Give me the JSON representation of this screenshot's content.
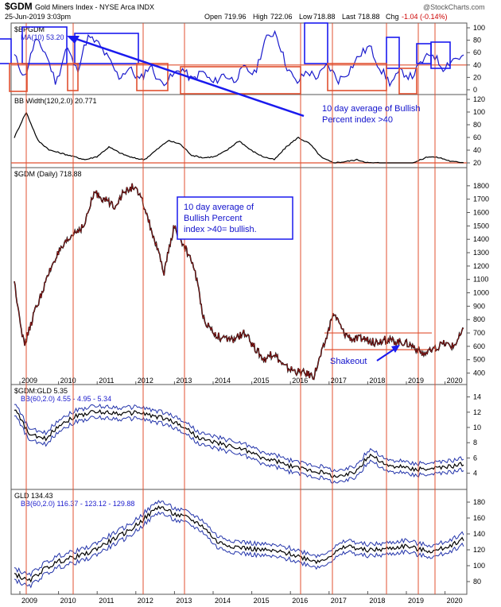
{
  "header": {
    "symbol": "$GDM",
    "name": "Gold Miners Index - NYSE Arca INDX",
    "date": "25-Jun-2019 3:03pm",
    "open_label": "Open",
    "open": "719.96",
    "high_label": "High",
    "high": "722.06",
    "low_label": "Low",
    "low": "718.88",
    "last_label": "Last",
    "last": "718.88",
    "chg_label": "Chg",
    "chg": "-1.04 (-0.14%)",
    "brand": "@StockCharts.com"
  },
  "annotations": {
    "bpi": [
      "10 day average of Bullish",
      "Percent index >40"
    ],
    "main": [
      "10 day average of",
      "Bullish Percent",
      "index >40= bullish."
    ],
    "shakeout": "Shakeout"
  },
  "chart_data": [
    {
      "type": "line",
      "id": "bpgdm",
      "title": "$BPGDM",
      "legend": "MA(10) 53.20",
      "ylim": [
        0,
        100
      ],
      "yticks": [
        "100",
        "80",
        "60",
        "40",
        "20",
        "0"
      ],
      "y": [
        55,
        20,
        80,
        60,
        10,
        70,
        30,
        85,
        75,
        50,
        20,
        35,
        15,
        40,
        10,
        20,
        35,
        15,
        30,
        10,
        25,
        15,
        35,
        25,
        80,
        95,
        40,
        10,
        30,
        20,
        40,
        15,
        30,
        55,
        70,
        35,
        10,
        30,
        20,
        45,
        60,
        35,
        50,
        53
      ],
      "reference_line": 40
    },
    {
      "type": "line",
      "id": "bbwidth",
      "title": "BB Width(120,2.0) 20.771",
      "ylim": [
        20,
        120
      ],
      "yticks": [
        "120",
        "100",
        "80",
        "60",
        "40",
        "20"
      ],
      "y": [
        60,
        100,
        55,
        40,
        35,
        30,
        25,
        30,
        45,
        35,
        28,
        25,
        40,
        55,
        50,
        32,
        28,
        30,
        40,
        55,
        40,
        30,
        25,
        45,
        60,
        50,
        28,
        20,
        22,
        25,
        20,
        20,
        18,
        17,
        22,
        30,
        28,
        22,
        20.77
      ],
      "reference_line": 20
    },
    {
      "type": "line",
      "id": "gdm",
      "title": "$GDM (Daily) 718.88",
      "ylim": [
        350,
        1900
      ],
      "yticks": [
        "1800",
        "1700",
        "1600",
        "1500",
        "1400",
        "1300",
        "1200",
        "1100",
        "1000",
        "900",
        "800",
        "700",
        "600",
        "500",
        "400"
      ],
      "x_labels": [
        "2009",
        "2010",
        "2011",
        "2012",
        "2013",
        "2014",
        "2015",
        "2016",
        "2017",
        "2018",
        "2019",
        "2020"
      ],
      "x": [
        "2008-10",
        "2009-01",
        "2009-04",
        "2009-07",
        "2009-10",
        "2010-01",
        "2010-04",
        "2010-07",
        "2010-10",
        "2011-01",
        "2011-04",
        "2011-07",
        "2011-09",
        "2011-11",
        "2012-01",
        "2012-04",
        "2012-07",
        "2012-10",
        "2013-01",
        "2013-04",
        "2013-07",
        "2013-10",
        "2014-01",
        "2014-04",
        "2014-07",
        "2014-10",
        "2015-01",
        "2015-04",
        "2015-07",
        "2015-10",
        "2016-01",
        "2016-04",
        "2016-08",
        "2016-11",
        "2017-01",
        "2017-04",
        "2017-07",
        "2017-10",
        "2018-01",
        "2018-04",
        "2018-07",
        "2018-09",
        "2018-12",
        "2019-03",
        "2019-05",
        "2019-06"
      ],
      "y": [
        1080,
        600,
        850,
        1050,
        1250,
        1350,
        1450,
        1500,
        1750,
        1700,
        1650,
        1750,
        1800,
        1650,
        1400,
        1150,
        1500,
        1350,
        1200,
        800,
        700,
        650,
        650,
        700,
        600,
        500,
        550,
        450,
        420,
        400,
        380,
        600,
        850,
        700,
        650,
        660,
        630,
        650,
        640,
        630,
        600,
        540,
        570,
        620,
        600,
        719
      ],
      "hlines": [
        700,
        575
      ]
    },
    {
      "type": "line",
      "id": "gdmgld",
      "title": "$GDM:GLD 5.35",
      "legend": "BB(60,2.0) 4.55 - 4.95 - 5.34",
      "ylim": [
        2.5,
        15
      ],
      "yticks": [
        "14",
        "12",
        "10",
        "8",
        "6",
        "4"
      ],
      "y": [
        12.5,
        9,
        8.5,
        10.5,
        11.5,
        12,
        12,
        11.8,
        12,
        11.5,
        11,
        10,
        8.5,
        8,
        7.5,
        7,
        6,
        5.5,
        4.8,
        4.5,
        4,
        3.5,
        4.2,
        6.5,
        5,
        4.8,
        4.5,
        4.6,
        4.8,
        5.3
      ]
    },
    {
      "type": "line",
      "id": "gld",
      "title": "GLD 134.43",
      "legend": "BB(60,2.0) 116.37 - 123.12 - 129.88",
      "ylim": [
        70,
        190
      ],
      "yticks": [
        "180",
        "160",
        "140",
        "120",
        "100",
        "80"
      ],
      "y": [
        90,
        80,
        95,
        105,
        110,
        115,
        125,
        135,
        145,
        160,
        175,
        165,
        160,
        150,
        130,
        125,
        122,
        120,
        118,
        115,
        110,
        105,
        115,
        125,
        120,
        120,
        122,
        125,
        120,
        118,
        125,
        134
      ]
    }
  ]
}
